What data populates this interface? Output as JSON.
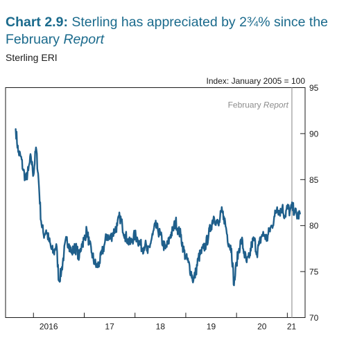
{
  "header": {
    "chart_number": "Chart 2.9:",
    "title_main": " Sterling has appreciated by 2¾% since the February ",
    "title_italic": "Report",
    "subtitle": "Sterling ERI"
  },
  "chart_data": {
    "type": "line",
    "title": "Sterling has appreciated by 2¾% since the February Report",
    "subtitle": "Sterling ERI",
    "units_label": "Index: January 2005 = 100",
    "ylim": [
      70,
      95
    ],
    "yticks": [
      "95",
      "90",
      "85",
      "80",
      "75",
      "70"
    ],
    "ytick_values": [
      95,
      90,
      85,
      80,
      75,
      70
    ],
    "xlim": [
      2015.45,
      2021.35
    ],
    "xticks": [
      "2016",
      "17",
      "18",
      "19",
      "20",
      "21"
    ],
    "xtick_positions": [
      2016.5,
      2017.5,
      2018.5,
      2019.5,
      2020.5,
      2021.5
    ],
    "grid": false,
    "annotation": {
      "label_main": "February ",
      "label_italic": "Report",
      "x": 2021.09
    },
    "series": [
      {
        "color": "#1f5f8b",
        "x": [
          2015.65,
          2015.7,
          2015.75,
          2015.8,
          2015.85,
          2015.9,
          2015.95,
          2016.0,
          2016.05,
          2016.1,
          2016.15,
          2016.2,
          2016.25,
          2016.3,
          2016.35,
          2016.4,
          2016.45,
          2016.5,
          2016.55,
          2016.6,
          2016.65,
          2016.7,
          2016.75,
          2016.8,
          2016.85,
          2016.9,
          2016.95,
          2017.0,
          2017.05,
          2017.1,
          2017.15,
          2017.2,
          2017.25,
          2017.3,
          2017.35,
          2017.4,
          2017.45,
          2017.5,
          2017.55,
          2017.6,
          2017.65,
          2017.7,
          2017.75,
          2017.8,
          2017.85,
          2017.9,
          2017.95,
          2018.0,
          2018.05,
          2018.1,
          2018.15,
          2018.2,
          2018.25,
          2018.3,
          2018.35,
          2018.4,
          2018.45,
          2018.5,
          2018.55,
          2018.6,
          2018.65,
          2018.7,
          2018.75,
          2018.8,
          2018.85,
          2018.9,
          2018.95,
          2019.0,
          2019.05,
          2019.1,
          2019.15,
          2019.2,
          2019.25,
          2019.3,
          2019.35,
          2019.4,
          2019.45,
          2019.5,
          2019.55,
          2019.6,
          2019.65,
          2019.7,
          2019.75,
          2019.8,
          2019.85,
          2019.9,
          2019.95,
          2020.0,
          2020.05,
          2020.1,
          2020.15,
          2020.2,
          2020.25,
          2020.3,
          2020.35,
          2020.4,
          2020.45,
          2020.5,
          2020.55,
          2020.6,
          2020.65,
          2020.7,
          2020.75,
          2020.8,
          2020.85,
          2020.9,
          2020.95,
          2021.0,
          2021.05,
          2021.1,
          2021.15,
          2021.2,
          2021.25
        ],
        "y": [
          90.5,
          88.0,
          87.5,
          86.0,
          85.0,
          86.0,
          87.5,
          85.5,
          88.5,
          85.0,
          80.5,
          79.0,
          79.5,
          78.5,
          77.5,
          77.0,
          78.0,
          74.0,
          75.0,
          77.0,
          78.5,
          78.0,
          77.0,
          77.5,
          77.5,
          76.5,
          78.0,
          78.5,
          79.5,
          78.0,
          77.0,
          76.0,
          75.5,
          76.0,
          77.0,
          78.0,
          79.0,
          78.5,
          79.0,
          79.5,
          80.0,
          81.0,
          80.0,
          79.0,
          78.5,
          78.0,
          78.5,
          79.0,
          78.5,
          78.0,
          77.5,
          78.0,
          77.0,
          78.0,
          79.0,
          80.0,
          79.5,
          79.0,
          78.0,
          77.5,
          78.0,
          79.0,
          79.5,
          80.5,
          79.5,
          79.0,
          77.5,
          76.5,
          76.0,
          75.0,
          74.0,
          75.0,
          76.5,
          77.0,
          77.5,
          78.0,
          79.0,
          80.0,
          81.0,
          80.5,
          80.0,
          81.5,
          81.0,
          79.5,
          78.0,
          77.5,
          73.5,
          76.0,
          77.5,
          78.5,
          77.0,
          76.0,
          76.5,
          78.0,
          78.5,
          77.0,
          78.0,
          79.0,
          79.0,
          78.5,
          79.5,
          80.0,
          81.0,
          82.0,
          81.5,
          82.0,
          81.0,
          82.0,
          81.5,
          82.0,
          81.5,
          81.0,
          81.3
        ]
      }
    ]
  }
}
